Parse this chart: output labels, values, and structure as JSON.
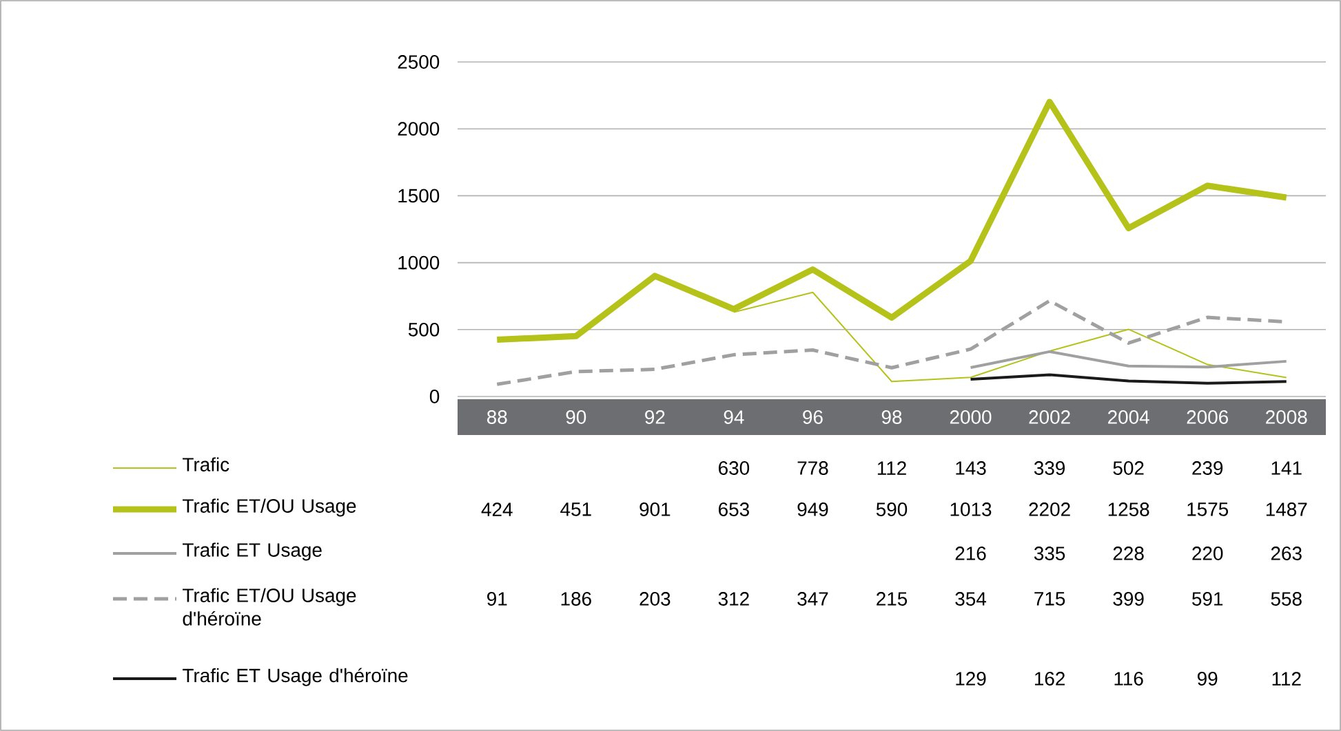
{
  "chart_data": {
    "type": "line",
    "categories": [
      "88",
      "90",
      "92",
      "94",
      "96",
      "98",
      "2000",
      "2002",
      "2004",
      "2006",
      "2008"
    ],
    "series": [
      {
        "name": "Trafic",
        "color": "#b5c21a",
        "line_style": "solid",
        "values": [
          null,
          null,
          null,
          630,
          778,
          112,
          143,
          339,
          502,
          239,
          141
        ]
      },
      {
        "name": "Trafic ET/OU Usage",
        "color": "#b5c21a",
        "line_style": "solid",
        "values": [
          424,
          451,
          901,
          653,
          949,
          590,
          1013,
          2202,
          1258,
          1575,
          1487
        ]
      },
      {
        "name": "Trafic ET Usage",
        "color": "#a0a0a0",
        "line_style": "solid",
        "values": [
          null,
          null,
          null,
          null,
          null,
          null,
          216,
          335,
          228,
          220,
          263
        ]
      },
      {
        "name": "Trafic ET/OU Usage d'héroïne",
        "color": "#a0a0a0",
        "line_style": "dashed",
        "values": [
          91,
          186,
          203,
          312,
          347,
          215,
          354,
          715,
          399,
          591,
          558
        ]
      },
      {
        "name": "Trafic ET Usage d'héroïne",
        "color": "#1a1a1a",
        "line_style": "solid",
        "values": [
          null,
          null,
          null,
          null,
          null,
          null,
          129,
          162,
          116,
          99,
          112
        ]
      }
    ],
    "ylim": [
      0,
      2500
    ],
    "yticks": [
      0,
      500,
      1000,
      1500,
      2000,
      2500
    ],
    "grid": "y",
    "legend": "bottom left",
    "data_labels": true,
    "marker": "none"
  }
}
